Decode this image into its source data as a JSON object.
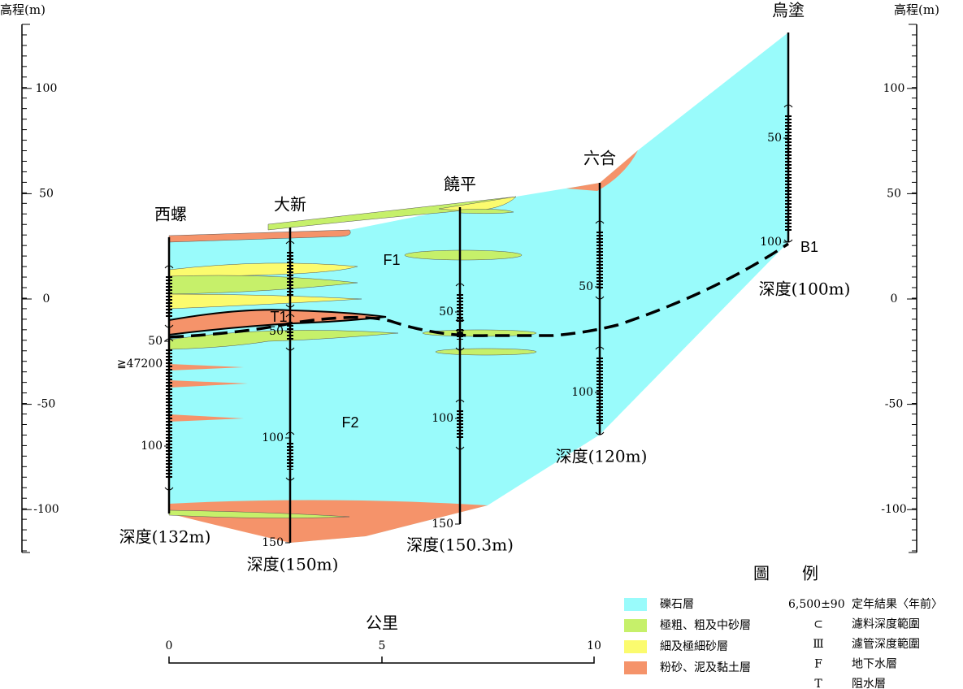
{
  "axis": {
    "title": "高程(m)",
    "labels": [
      "100",
      "50",
      "0",
      "-50",
      "-100"
    ]
  },
  "wells": [
    {
      "name": "西螺",
      "depth": "深度(132m)",
      "ticks": [
        "50",
        "100"
      ]
    },
    {
      "name": "大新",
      "depth": "深度(150m)",
      "ticks": [
        "50",
        "100",
        "150"
      ]
    },
    {
      "name": "饒平",
      "depth": "深度(150.3m)",
      "ticks": [
        "50",
        "100",
        "150"
      ]
    },
    {
      "name": "六合",
      "depth": "深度(120m)",
      "ticks": [
        "50",
        "100"
      ]
    },
    {
      "name": "烏塗",
      "depth": "深度(100m)",
      "ticks": [
        "50",
        "100"
      ]
    }
  ],
  "annotations": {
    "age": "≧47200",
    "f1": "F1",
    "f2": "F2",
    "t1": "T1",
    "b1": "B1"
  },
  "scale": {
    "title": "公里",
    "labels": [
      "0",
      "5",
      "10"
    ]
  },
  "legend": {
    "title": [
      "圖",
      "例"
    ],
    "layers": [
      {
        "label": "礫石層",
        "color": "#99fbfb"
      },
      {
        "label": "極粗、粗及中砂層",
        "color": "#c6f06a"
      },
      {
        "label": "細及極細砂層",
        "color": "#fbfb6e"
      },
      {
        "label": "粉砂、泥及黏土層",
        "color": "#f5936a"
      }
    ],
    "symbols": [
      {
        "symbol": "6,500±90",
        "label": "定年結果〈年前〉"
      },
      {
        "symbol": "⊂",
        "label": "濾料深度範圍"
      },
      {
        "symbol": "Ⅲ",
        "label": "濾管深度範圍"
      },
      {
        "symbol": "F",
        "label": "地下水層"
      },
      {
        "symbol": "T",
        "label": "阻水層"
      }
    ]
  }
}
